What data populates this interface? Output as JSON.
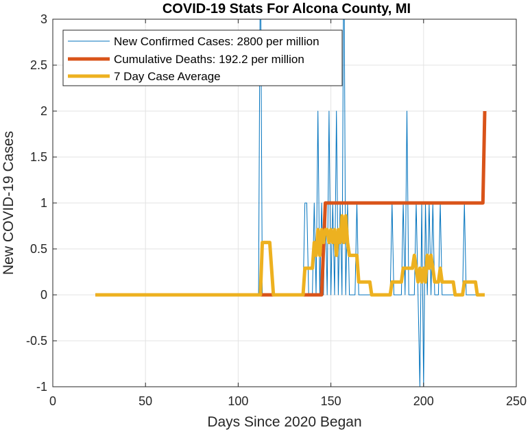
{
  "chart_data": {
    "type": "line",
    "title": "COVID-19 Stats For Alcona County, MI",
    "xlabel": "Days Since 2020 Began",
    "ylabel": "New COVID-19 Cases",
    "xlim": [
      0,
      250
    ],
    "ylim": [
      -1,
      3
    ],
    "x_ticks": [
      0,
      50,
      100,
      150,
      200,
      250
    ],
    "y_ticks": [
      -1,
      -0.5,
      0,
      0.5,
      1,
      1.5,
      2,
      2.5,
      3
    ],
    "x_tick_labels": [
      "0",
      "50",
      "100",
      "150",
      "200",
      "250"
    ],
    "y_tick_labels": [
      "-1",
      "-0.5",
      "0",
      "0.5",
      "1",
      "1.5",
      "2",
      "2.5",
      "3"
    ],
    "grid": true,
    "legend_position": "top-left",
    "series": [
      {
        "name": "New Confirmed Cases: 2800 per million",
        "color": "#0072BD",
        "points": [
          [
            23,
            0
          ],
          [
            111,
            0
          ],
          [
            112,
            4
          ],
          [
            113,
            0
          ],
          [
            135,
            0
          ],
          [
            136,
            1
          ],
          [
            137,
            1
          ],
          [
            138,
            0
          ],
          [
            140,
            0
          ],
          [
            141,
            1
          ],
          [
            142,
            0
          ],
          [
            143,
            2
          ],
          [
            144,
            0
          ],
          [
            145,
            1
          ],
          [
            146,
            0
          ],
          [
            147,
            1
          ],
          [
            148,
            0
          ],
          [
            149,
            2
          ],
          [
            150,
            0
          ],
          [
            151,
            1
          ],
          [
            152,
            0
          ],
          [
            153,
            2
          ],
          [
            154,
            0
          ],
          [
            155,
            1
          ],
          [
            156,
            0
          ],
          [
            157,
            4
          ],
          [
            158,
            0
          ],
          [
            159,
            1
          ],
          [
            160,
            0
          ],
          [
            163,
            0
          ],
          [
            164,
            1
          ],
          [
            165,
            0
          ],
          [
            182,
            0
          ],
          [
            183,
            1
          ],
          [
            184,
            0
          ],
          [
            188,
            0
          ],
          [
            189,
            1
          ],
          [
            190,
            0
          ],
          [
            191,
            2
          ],
          [
            192,
            0
          ],
          [
            195,
            0
          ],
          [
            196,
            1
          ],
          [
            197,
            0
          ],
          [
            198,
            -1
          ],
          [
            199,
            1
          ],
          [
            200,
            -1
          ],
          [
            201,
            1
          ],
          [
            202,
            0
          ],
          [
            203,
            1
          ],
          [
            204,
            0
          ],
          [
            205,
            1
          ],
          [
            206,
            0
          ],
          [
            208,
            0
          ],
          [
            209,
            1
          ],
          [
            210,
            0
          ],
          [
            221,
            0
          ],
          [
            222,
            1
          ],
          [
            223,
            0
          ],
          [
            233,
            0
          ]
        ]
      },
      {
        "name": "Cumulative Deaths: 192.2 per million",
        "color": "#D95319",
        "points": [
          [
            23,
            0
          ],
          [
            145,
            0
          ],
          [
            147,
            1
          ],
          [
            232,
            1
          ],
          [
            233,
            2
          ]
        ]
      },
      {
        "name": "7 Day Case Average",
        "color": "#EDB120",
        "points": [
          [
            23,
            0
          ],
          [
            112,
            0
          ],
          [
            113,
            0.57
          ],
          [
            117,
            0.57
          ],
          [
            119,
            0
          ],
          [
            135,
            0
          ],
          [
            136,
            0.29
          ],
          [
            140,
            0.29
          ],
          [
            141,
            0.57
          ],
          [
            142,
            0.43
          ],
          [
            143,
            0.71
          ],
          [
            144,
            0.43
          ],
          [
            145,
            0.71
          ],
          [
            146,
            0.57
          ],
          [
            147,
            0.71
          ],
          [
            148,
            0.71
          ],
          [
            149,
            0.57
          ],
          [
            150,
            0.71
          ],
          [
            151,
            0.57
          ],
          [
            152,
            0.71
          ],
          [
            153,
            0.43
          ],
          [
            154,
            0.71
          ],
          [
            155,
            0.57
          ],
          [
            156,
            0.86
          ],
          [
            157,
            0.57
          ],
          [
            158,
            0.86
          ],
          [
            159,
            0.57
          ],
          [
            160,
            0.43
          ],
          [
            164,
            0.43
          ],
          [
            165,
            0.14
          ],
          [
            171,
            0.14
          ],
          [
            172,
            0
          ],
          [
            182,
            0
          ],
          [
            183,
            0.14
          ],
          [
            188,
            0.14
          ],
          [
            189,
            0.29
          ],
          [
            194,
            0.29
          ],
          [
            195,
            0.43
          ],
          [
            196,
            0.29
          ],
          [
            197,
            0.14
          ],
          [
            198,
            0.29
          ],
          [
            199,
            0.14
          ],
          [
            200,
            0.29
          ],
          [
            201,
            0.14
          ],
          [
            202,
            0.43
          ],
          [
            203,
            0.29
          ],
          [
            204,
            0.43
          ],
          [
            205,
            0.29
          ],
          [
            206,
            0.14
          ],
          [
            208,
            0.14
          ],
          [
            209,
            0.29
          ],
          [
            210,
            0.14
          ],
          [
            216,
            0.14
          ],
          [
            217,
            0
          ],
          [
            221,
            0
          ],
          [
            222,
            0.14
          ],
          [
            228,
            0.14
          ],
          [
            229,
            0
          ],
          [
            233,
            0
          ]
        ]
      }
    ]
  }
}
